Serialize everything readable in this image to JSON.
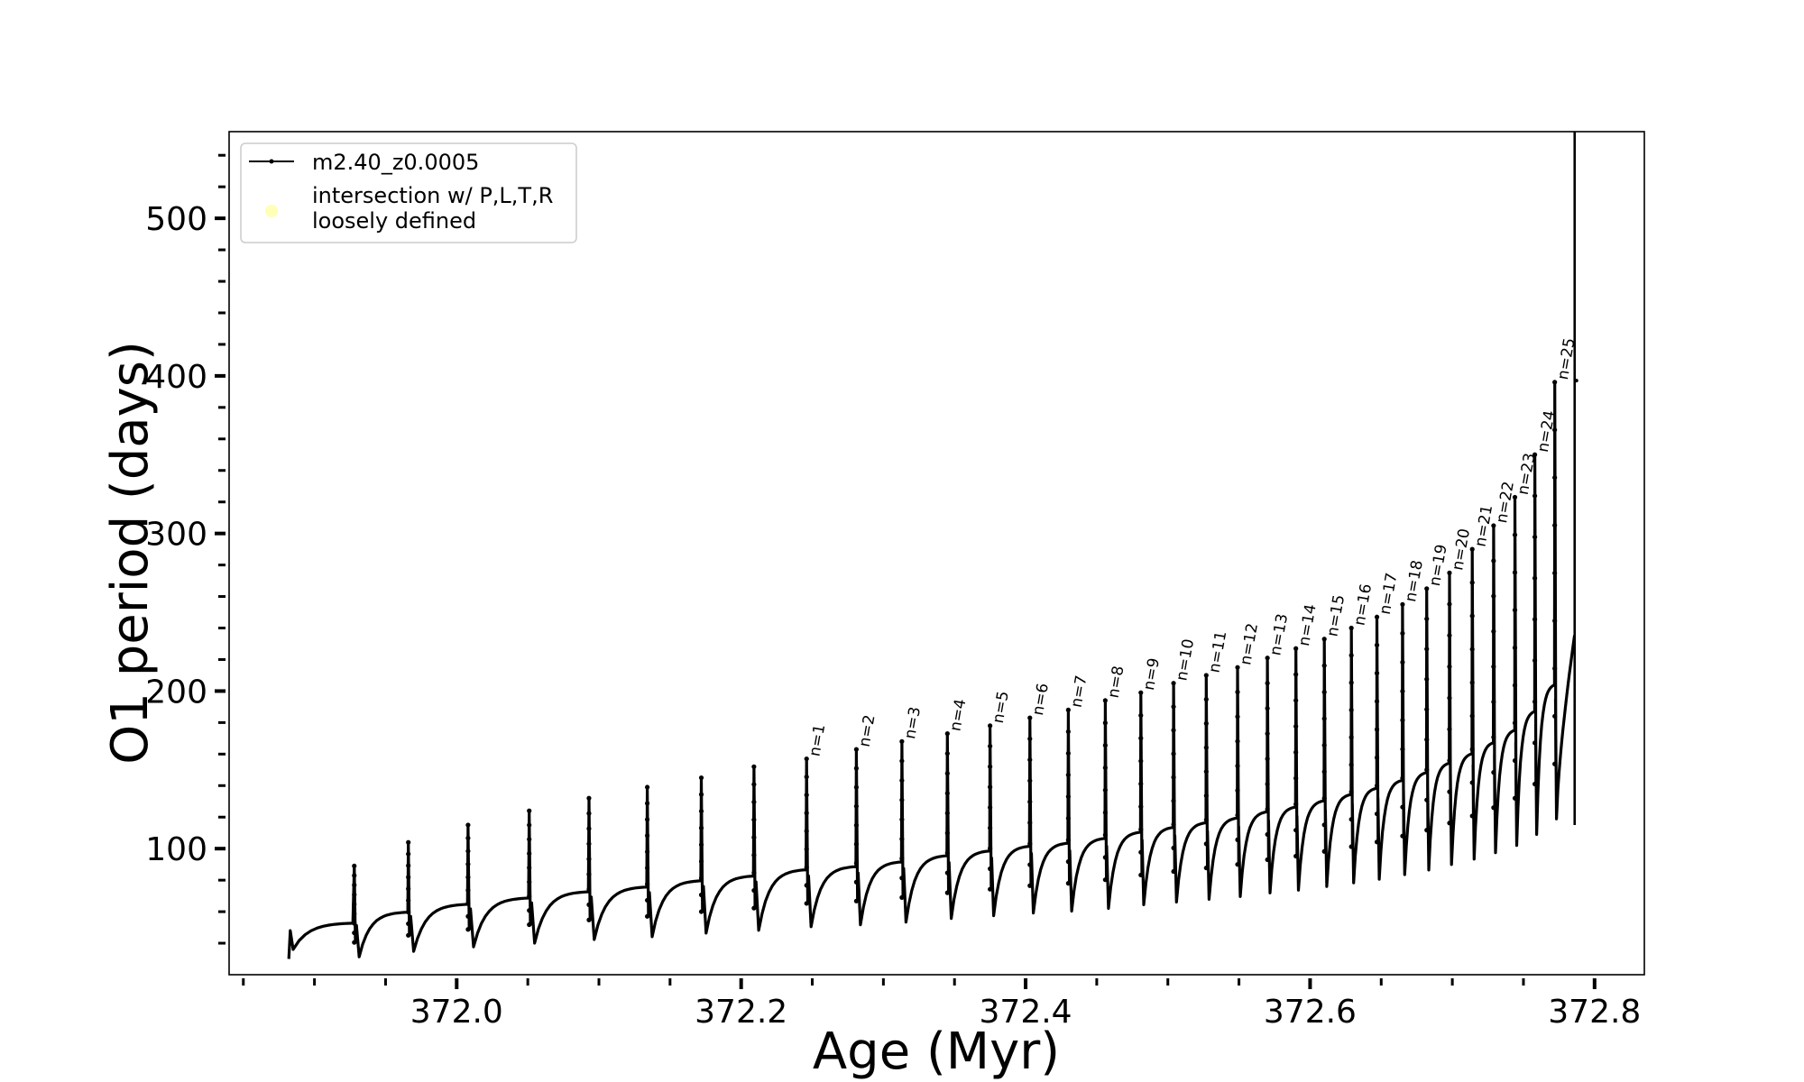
{
  "chart_data": {
    "type": "line",
    "xlabel": "Age (Myr)",
    "ylabel": "O1 period (days)",
    "xlim": [
      371.84,
      372.835
    ],
    "ylim": [
      20,
      555
    ],
    "x_ticks": [
      "372.0",
      "372.2",
      "372.4",
      "372.6",
      "372.8"
    ],
    "y_ticks": [
      "100",
      "200",
      "300",
      "400",
      "500"
    ],
    "legend": {
      "placement": "top-left",
      "entries": [
        {
          "label": "m2.40_z0.0005",
          "marker": "line-dot",
          "color": "#000000"
        },
        {
          "label": "intersection w/ P,L,T,R\nloosely defined",
          "marker": "circle",
          "color": "#ffffaa"
        }
      ]
    },
    "series": [
      {
        "name": "m2.40_z0.0005",
        "color": "#000000",
        "pulses": [
          {
            "age": 371.928,
            "peak": 89,
            "base": 54
          },
          {
            "age": 371.966,
            "peak": 104,
            "base": 60
          },
          {
            "age": 372.008,
            "peak": 115,
            "base": 65
          },
          {
            "age": 372.051,
            "peak": 124,
            "base": 69
          },
          {
            "age": 372.093,
            "peak": 132,
            "base": 73
          },
          {
            "age": 372.134,
            "peak": 139,
            "base": 76
          },
          {
            "age": 372.172,
            "peak": 145,
            "base": 80
          },
          {
            "age": 372.209,
            "peak": 152,
            "base": 83
          },
          {
            "age": 372.246,
            "peak": 157,
            "base": 87,
            "label": "n=1"
          },
          {
            "age": 372.281,
            "peak": 163,
            "base": 89,
            "label": "n=2"
          },
          {
            "age": 372.313,
            "peak": 168,
            "base": 92,
            "label": "n=3"
          },
          {
            "age": 372.345,
            "peak": 173,
            "base": 96,
            "label": "n=4"
          },
          {
            "age": 372.375,
            "peak": 178,
            "base": 99,
            "label": "n=5"
          },
          {
            "age": 372.403,
            "peak": 183,
            "base": 102,
            "label": "n=6"
          },
          {
            "age": 372.43,
            "peak": 188,
            "base": 104,
            "label": "n=7"
          },
          {
            "age": 372.456,
            "peak": 194,
            "base": 107,
            "label": "n=8"
          },
          {
            "age": 372.481,
            "peak": 199,
            "base": 111,
            "label": "n=9"
          },
          {
            "age": 372.504,
            "peak": 205,
            "base": 114,
            "label": "n=10"
          },
          {
            "age": 372.527,
            "peak": 210,
            "base": 117,
            "label": "n=11"
          },
          {
            "age": 372.549,
            "peak": 215,
            "base": 120,
            "label": "n=12"
          },
          {
            "age": 372.57,
            "peak": 221,
            "base": 124,
            "label": "n=13"
          },
          {
            "age": 372.59,
            "peak": 227,
            "base": 127,
            "label": "n=14"
          },
          {
            "age": 372.61,
            "peak": 233,
            "base": 131,
            "label": "n=15"
          },
          {
            "age": 372.629,
            "peak": 240,
            "base": 135,
            "label": "n=16"
          },
          {
            "age": 372.647,
            "peak": 247,
            "base": 139,
            "label": "n=17"
          },
          {
            "age": 372.665,
            "peak": 255,
            "base": 144,
            "label": "n=18"
          },
          {
            "age": 372.682,
            "peak": 265,
            "base": 149,
            "label": "n=19"
          },
          {
            "age": 372.698,
            "peak": 275,
            "base": 155,
            "label": "n=20"
          },
          {
            "age": 372.714,
            "peak": 290,
            "base": 161,
            "label": "n=21"
          },
          {
            "age": 372.729,
            "peak": 305,
            "base": 168,
            "label": "n=22"
          },
          {
            "age": 372.744,
            "peak": 323,
            "base": 176,
            "label": "n=23"
          },
          {
            "age": 372.758,
            "peak": 350,
            "base": 188,
            "label": "n=24"
          },
          {
            "age": 372.772,
            "peak": 396,
            "base": 205,
            "label": "n=25"
          }
        ],
        "start": {
          "age": 371.882,
          "period": 30
        },
        "end": {
          "age": 372.786,
          "period": 235,
          "spike_to": 555
        }
      }
    ]
  }
}
